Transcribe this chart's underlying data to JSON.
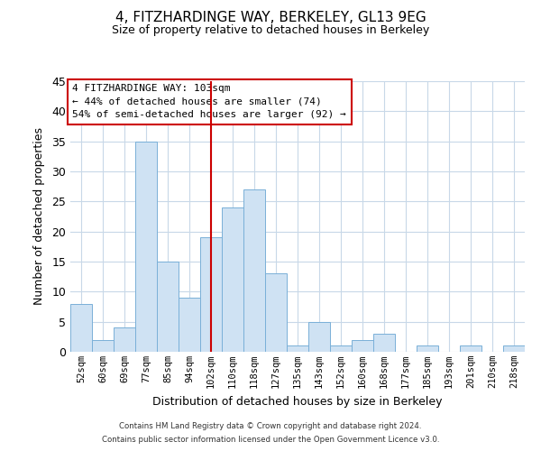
{
  "title": "4, FITZHARDINGE WAY, BERKELEY, GL13 9EG",
  "subtitle": "Size of property relative to detached houses in Berkeley",
  "xlabel": "Distribution of detached houses by size in Berkeley",
  "ylabel": "Number of detached properties",
  "bar_labels": [
    "52sqm",
    "60sqm",
    "69sqm",
    "77sqm",
    "85sqm",
    "94sqm",
    "102sqm",
    "110sqm",
    "118sqm",
    "127sqm",
    "135sqm",
    "143sqm",
    "152sqm",
    "160sqm",
    "168sqm",
    "177sqm",
    "185sqm",
    "193sqm",
    "201sqm",
    "210sqm",
    "218sqm"
  ],
  "bar_values": [
    8,
    2,
    4,
    35,
    15,
    9,
    19,
    24,
    27,
    13,
    1,
    5,
    1,
    2,
    3,
    0,
    1,
    0,
    1,
    0,
    1
  ],
  "bar_color": "#cfe2f3",
  "bar_edge_color": "#7ab0d8",
  "reference_line_x": 6,
  "reference_line_color": "#cc0000",
  "ylim": [
    0,
    45
  ],
  "yticks": [
    0,
    5,
    10,
    15,
    20,
    25,
    30,
    35,
    40,
    45
  ],
  "annotation_title": "4 FITZHARDINGE WAY: 103sqm",
  "annotation_line1": "← 44% of detached houses are smaller (74)",
  "annotation_line2": "54% of semi-detached houses are larger (92) →",
  "annotation_box_color": "#ffffff",
  "annotation_box_edge": "#cc0000",
  "footer_line1": "Contains HM Land Registry data © Crown copyright and database right 2024.",
  "footer_line2": "Contains public sector information licensed under the Open Government Licence v3.0.",
  "background_color": "#ffffff",
  "grid_color": "#c8d8e8"
}
